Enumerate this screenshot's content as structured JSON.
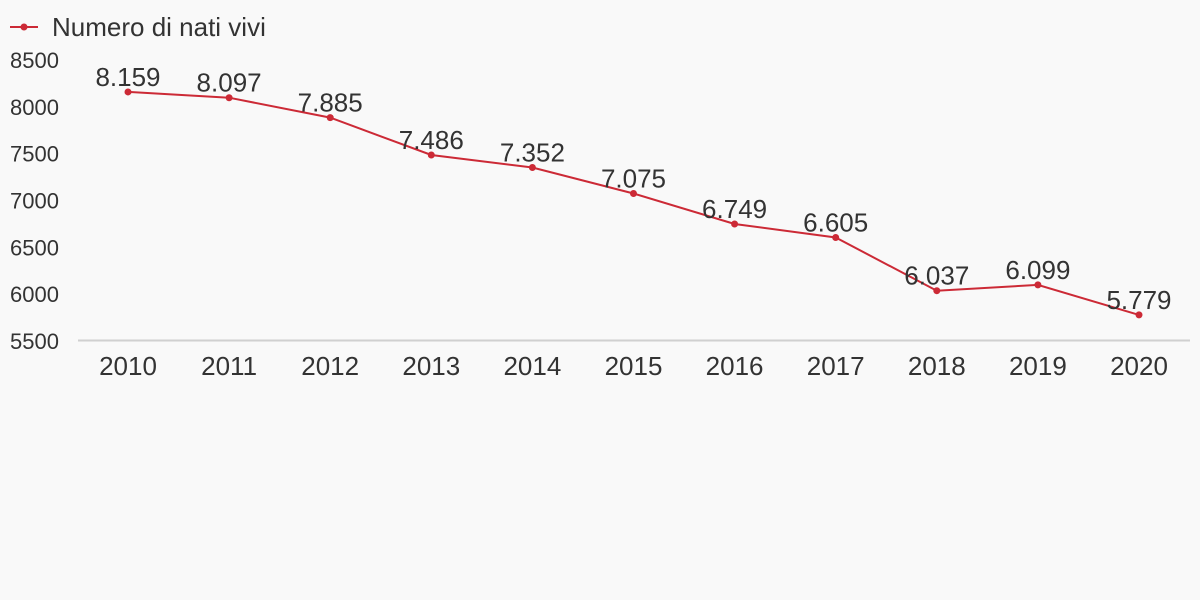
{
  "chart_data": {
    "type": "line",
    "x": [
      "2010",
      "2011",
      "2012",
      "2013",
      "2014",
      "2015",
      "2016",
      "2017",
      "2018",
      "2019",
      "2020"
    ],
    "series": [
      {
        "name": "Numero di nati vivi",
        "color": "#cc2a36",
        "values": [
          8159,
          8097,
          7885,
          7486,
          7352,
          7075,
          6749,
          6605,
          6037,
          6099,
          5779
        ],
        "labels": [
          "8.159",
          "8.097",
          "7.885",
          "7.486",
          "7.352",
          "7.075",
          "6.749",
          "6.605",
          "6.037",
          "6.099",
          "5.779"
        ]
      }
    ],
    "ylim": [
      5500,
      8500
    ],
    "yticks": [
      "8500",
      "8000",
      "7500",
      "7000",
      "6500",
      "6000",
      "5500"
    ],
    "grid": false,
    "legend_position": "top-left"
  }
}
